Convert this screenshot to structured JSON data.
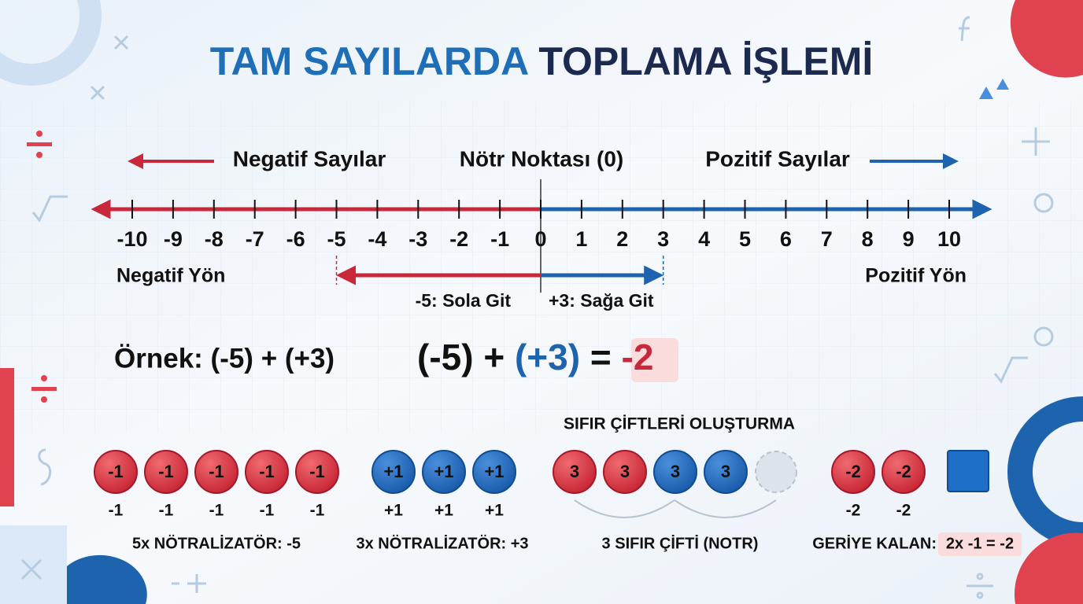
{
  "title": {
    "part1": "TAM SAYILARDA",
    "part2": "TOPLAMA İŞLEMİ"
  },
  "number_line": {
    "negative_label": "Negatif Sayılar",
    "neutral_label": "Nötr Noktası (0)",
    "positive_label": "Pozitif Sayılar",
    "ticks": [
      -10,
      -9,
      -8,
      -7,
      -6,
      -5,
      -4,
      -3,
      -2,
      -1,
      0,
      1,
      2,
      3,
      4,
      5,
      6,
      7,
      8,
      9,
      10
    ],
    "negative_direction": "Negatif Yön",
    "positive_direction": "Pozitif Yön",
    "moves": [
      {
        "from": 0,
        "to": -5,
        "label": "-5: Sola Git",
        "color": "#c8283a"
      },
      {
        "from": 0,
        "to": 3,
        "label": "+3: Sağa Git",
        "color": "#1e63ad"
      }
    ]
  },
  "example": {
    "label": "Örnek: (-5) + (+3)",
    "equation": {
      "a": "(-5)",
      "plus": "+",
      "b": "(+3)",
      "equals": "=",
      "result": "-2"
    }
  },
  "zero_pairs": {
    "heading": "SIFIR ÇİFTLERİ OLUŞTURMA",
    "groups": [
      {
        "chips": [
          {
            "label": "-1",
            "sub": "-1",
            "color": "red"
          },
          {
            "label": "-1",
            "sub": "-1",
            "color": "red"
          },
          {
            "label": "-1",
            "sub": "-1",
            "color": "red"
          },
          {
            "label": "-1",
            "sub": "-1",
            "color": "red"
          },
          {
            "label": "-1",
            "sub": "-1",
            "color": "red"
          }
        ],
        "caption": "5x NÖTRALİZATÖR: -5"
      },
      {
        "chips": [
          {
            "label": "+1",
            "sub": "+1",
            "color": "blue"
          },
          {
            "label": "+1",
            "sub": "+1",
            "color": "blue"
          },
          {
            "label": "+1",
            "sub": "+1",
            "color": "blue"
          }
        ],
        "caption": "3x NÖTRALİZATÖR: +3"
      },
      {
        "chips": [
          {
            "label": "3",
            "color": "red"
          },
          {
            "label": "3",
            "color": "red"
          },
          {
            "label": "3",
            "color": "blue"
          },
          {
            "label": "3",
            "color": "blue"
          }
        ],
        "caption": "3 SIFIR ÇİFTİ (NOTR)"
      },
      {
        "chips": [
          {
            "label": "-2",
            "sub": "-2",
            "color": "red"
          },
          {
            "label": "-2",
            "sub": "-2",
            "color": "red"
          }
        ],
        "caption": "GERİYE KALAN:",
        "caption_highlight": "2x -1 = -2"
      }
    ]
  }
}
